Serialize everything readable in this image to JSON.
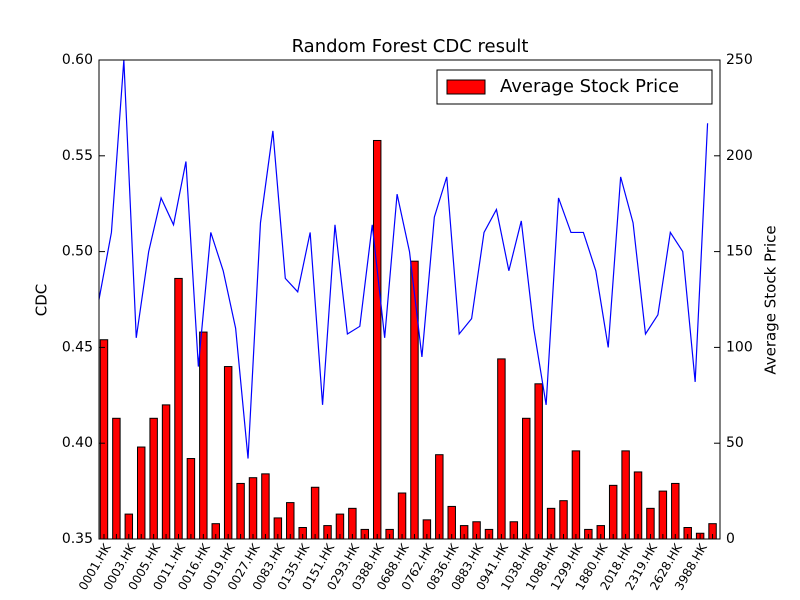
{
  "chart_data": {
    "type": "bar_line",
    "title": "Random Forest CDC result",
    "ylabel": "CDC",
    "y2label": "Average Stock Price",
    "categories": [
      "0001.HK",
      null,
      "0003.HK",
      null,
      "0005.HK",
      null,
      "0011.HK",
      null,
      "0016.HK",
      null,
      "0019.HK",
      null,
      "0027.HK",
      null,
      "0083.HK",
      null,
      "0135.HK",
      null,
      "0151.HK",
      null,
      "0293.HK",
      null,
      "0388.HK",
      null,
      "0688.HK",
      null,
      "0762.HK",
      null,
      "0836.HK",
      null,
      "0883.HK",
      null,
      "0941.HK",
      null,
      "1038.HK",
      null,
      "1088.HK",
      null,
      "1299.HK",
      null,
      "1880.HK",
      null,
      "2018.HK",
      null,
      "2319.HK",
      null,
      "2628.HK",
      null,
      "3988.HK",
      null
    ],
    "series": [
      {
        "name": "Average Stock Price",
        "type": "bar",
        "axis": "y2",
        "color": "#ff0000",
        "values": [
          104,
          63,
          13,
          48,
          63,
          70,
          136,
          42,
          108,
          8,
          90,
          29,
          32,
          34,
          11,
          19,
          6,
          27,
          7,
          13,
          16,
          5,
          208,
          5,
          24,
          145,
          10,
          44,
          17,
          7,
          9,
          5,
          94,
          9,
          63,
          81,
          16,
          20,
          46,
          5,
          7,
          28,
          46,
          35,
          16,
          25,
          29,
          6,
          3,
          8
        ]
      },
      {
        "type": "line",
        "axis": "y",
        "color": "#0000ff",
        "values": [
          0.475,
          0.51,
          0.6,
          0.455,
          0.5,
          0.528,
          0.514,
          0.547,
          0.44,
          0.51,
          0.49,
          0.46,
          0.392,
          0.515,
          0.563,
          0.486,
          0.479,
          0.51,
          0.42,
          0.514,
          0.457,
          0.461,
          0.514,
          0.455,
          0.53,
          0.5,
          0.445,
          0.518,
          0.539,
          0.457,
          0.465,
          0.51,
          0.522,
          0.49,
          0.516,
          0.46,
          0.42,
          0.528,
          0.51,
          0.51,
          0.49,
          0.45,
          0.539,
          0.515,
          0.457,
          0.467,
          0.51,
          0.5,
          0.432,
          0.567
        ]
      }
    ],
    "ylim": [
      0.35,
      0.6
    ],
    "yticks": [
      0.35,
      {
        "value": 0.4,
        "label": "0.40"
      },
      0.45,
      {
        "value": 0.5,
        "label": "0.50"
      },
      0.55,
      {
        "value": 0.6,
        "label": "0.60"
      }
    ],
    "y2lim": [
      0,
      250
    ],
    "y2ticks": [
      0,
      50,
      100,
      150,
      200,
      250
    ],
    "legend": "upper right",
    "grid": false
  }
}
